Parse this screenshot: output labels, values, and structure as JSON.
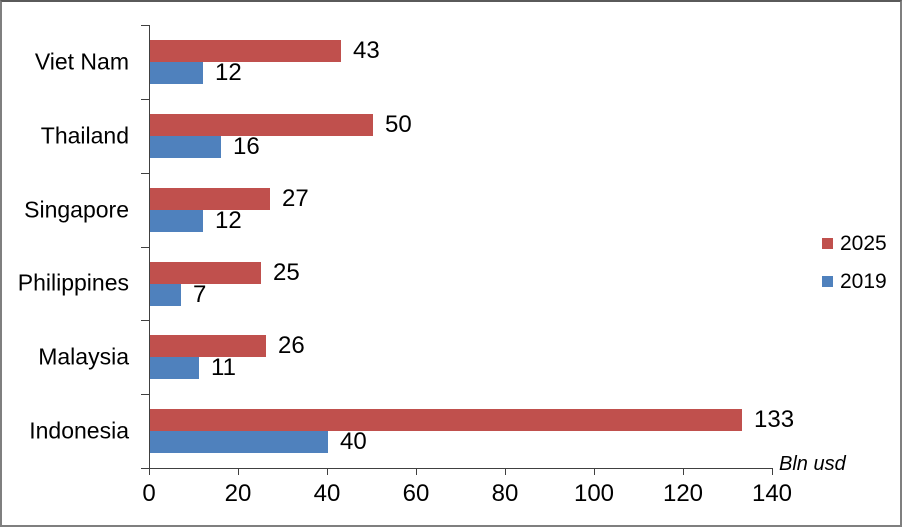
{
  "chart_data": {
    "type": "bar",
    "orientation": "horizontal",
    "title": "",
    "categories": [
      "Viet Nam",
      "Thailand",
      "Singapore",
      "Philippines",
      "Malaysia",
      "Indonesia"
    ],
    "series": [
      {
        "name": "2025",
        "color": "#C0504D",
        "values": [
          43,
          50,
          27,
          25,
          26,
          133
        ]
      },
      {
        "name": "2019",
        "color": "#4F81BD",
        "values": [
          12,
          16,
          12,
          7,
          11,
          40
        ]
      }
    ],
    "xlabel": "Bln usd",
    "ylabel": "",
    "xlim": [
      0,
      140
    ],
    "x_ticks": [
      0,
      20,
      40,
      60,
      80,
      100,
      120,
      140
    ],
    "grid": false,
    "data_labels": true,
    "legend_position": "right"
  },
  "colors": {
    "background": "#ffffff",
    "frame_border": "#7f7f7f",
    "axis": "#404040",
    "text": "#000000",
    "series_2025": "#C0504D",
    "series_2019": "#4F81BD"
  }
}
